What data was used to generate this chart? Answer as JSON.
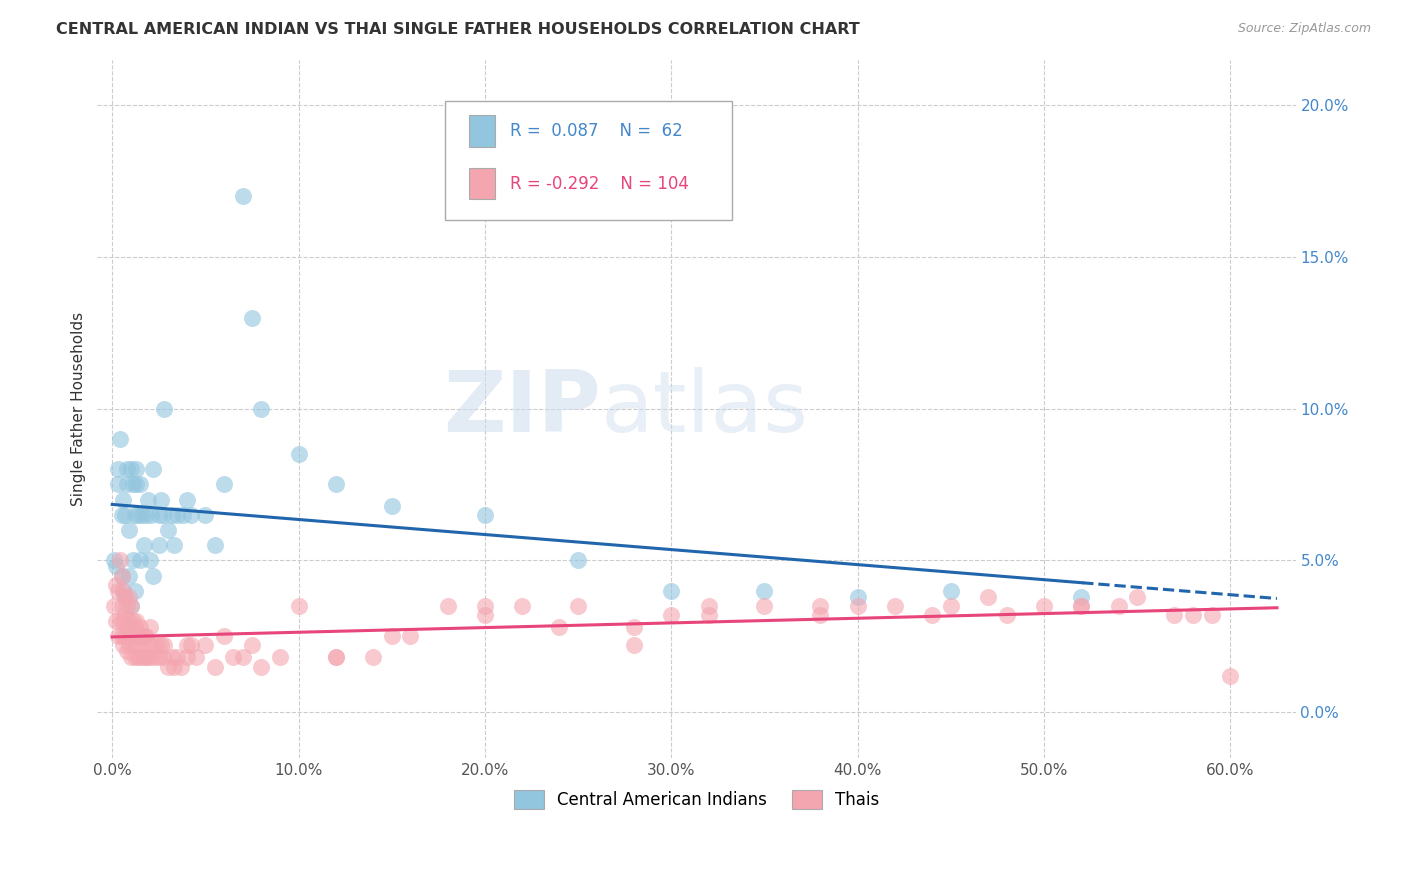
{
  "title": "CENTRAL AMERICAN INDIAN VS THAI SINGLE FATHER HOUSEHOLDS CORRELATION CHART",
  "source": "Source: ZipAtlas.com",
  "ylabel": "Single Father Households",
  "ytick_labels": [
    "0.0%",
    "5.0%",
    "10.0%",
    "15.0%",
    "20.0%"
  ],
  "ytick_vals": [
    0.0,
    0.05,
    0.1,
    0.15,
    0.2
  ],
  "xtick_labels": [
    "0.0%",
    "10.0%",
    "20.0%",
    "30.0%",
    "40.0%",
    "50.0%",
    "60.0%"
  ],
  "xtick_vals": [
    0.0,
    0.1,
    0.2,
    0.3,
    0.4,
    0.5,
    0.6
  ],
  "xlim": [
    -0.008,
    0.635
  ],
  "ylim": [
    -0.015,
    0.215
  ],
  "legend_blue_R": 0.087,
  "legend_blue_N": 62,
  "legend_pink_R": -0.292,
  "legend_pink_N": 104,
  "label_blue": "Central American Indians",
  "label_pink": "Thais",
  "blue_color": "#92c5de",
  "pink_color": "#f4a6b0",
  "blue_line_color": "#2166ac",
  "pink_line_color": "#e8457a",
  "watermark_zip": "ZIP",
  "watermark_atlas": "atlas",
  "blue_scatter_x": [
    0.001,
    0.002,
    0.003,
    0.003,
    0.004,
    0.005,
    0.005,
    0.006,
    0.006,
    0.007,
    0.007,
    0.008,
    0.008,
    0.009,
    0.009,
    0.01,
    0.01,
    0.011,
    0.011,
    0.012,
    0.012,
    0.013,
    0.013,
    0.014,
    0.015,
    0.015,
    0.016,
    0.017,
    0.018,
    0.019,
    0.02,
    0.021,
    0.022,
    0.022,
    0.025,
    0.025,
    0.026,
    0.027,
    0.028,
    0.03,
    0.032,
    0.033,
    0.035,
    0.038,
    0.04,
    0.042,
    0.05,
    0.055,
    0.06,
    0.07,
    0.075,
    0.08,
    0.1,
    0.12,
    0.15,
    0.2,
    0.25,
    0.3,
    0.35,
    0.4,
    0.45,
    0.52
  ],
  "blue_scatter_y": [
    0.05,
    0.048,
    0.075,
    0.08,
    0.09,
    0.045,
    0.065,
    0.04,
    0.07,
    0.038,
    0.065,
    0.075,
    0.08,
    0.045,
    0.06,
    0.035,
    0.08,
    0.05,
    0.075,
    0.04,
    0.065,
    0.075,
    0.08,
    0.065,
    0.05,
    0.075,
    0.065,
    0.055,
    0.065,
    0.07,
    0.05,
    0.065,
    0.045,
    0.08,
    0.055,
    0.065,
    0.07,
    0.065,
    0.1,
    0.06,
    0.065,
    0.055,
    0.065,
    0.065,
    0.07,
    0.065,
    0.065,
    0.055,
    0.075,
    0.17,
    0.13,
    0.1,
    0.085,
    0.075,
    0.068,
    0.065,
    0.05,
    0.04,
    0.04,
    0.038,
    0.04,
    0.038
  ],
  "pink_scatter_x": [
    0.001,
    0.002,
    0.002,
    0.003,
    0.003,
    0.004,
    0.004,
    0.005,
    0.005,
    0.005,
    0.006,
    0.006,
    0.006,
    0.007,
    0.007,
    0.007,
    0.008,
    0.008,
    0.008,
    0.009,
    0.009,
    0.009,
    0.01,
    0.01,
    0.01,
    0.011,
    0.011,
    0.012,
    0.012,
    0.013,
    0.013,
    0.014,
    0.014,
    0.015,
    0.015,
    0.016,
    0.016,
    0.017,
    0.017,
    0.018,
    0.018,
    0.019,
    0.02,
    0.02,
    0.021,
    0.022,
    0.023,
    0.024,
    0.025,
    0.026,
    0.027,
    0.028,
    0.03,
    0.032,
    0.033,
    0.035,
    0.037,
    0.04,
    0.04,
    0.042,
    0.045,
    0.05,
    0.055,
    0.06,
    0.065,
    0.07,
    0.075,
    0.08,
    0.09,
    0.1,
    0.12,
    0.14,
    0.16,
    0.18,
    0.2,
    0.22,
    0.25,
    0.28,
    0.3,
    0.32,
    0.35,
    0.38,
    0.4,
    0.42,
    0.45,
    0.47,
    0.5,
    0.52,
    0.54,
    0.55,
    0.57,
    0.58,
    0.59,
    0.6,
    0.52,
    0.48,
    0.44,
    0.38,
    0.32,
    0.28,
    0.24,
    0.2,
    0.15,
    0.12
  ],
  "pink_scatter_y": [
    0.035,
    0.03,
    0.042,
    0.025,
    0.04,
    0.03,
    0.05,
    0.025,
    0.035,
    0.045,
    0.022,
    0.03,
    0.04,
    0.025,
    0.032,
    0.038,
    0.02,
    0.028,
    0.035,
    0.022,
    0.03,
    0.038,
    0.018,
    0.025,
    0.035,
    0.022,
    0.03,
    0.018,
    0.028,
    0.022,
    0.03,
    0.018,
    0.025,
    0.018,
    0.028,
    0.02,
    0.025,
    0.018,
    0.025,
    0.018,
    0.025,
    0.018,
    0.022,
    0.028,
    0.018,
    0.022,
    0.018,
    0.022,
    0.018,
    0.022,
    0.018,
    0.022,
    0.015,
    0.018,
    0.015,
    0.018,
    0.015,
    0.022,
    0.018,
    0.022,
    0.018,
    0.022,
    0.015,
    0.025,
    0.018,
    0.018,
    0.022,
    0.015,
    0.018,
    0.035,
    0.018,
    0.018,
    0.025,
    0.035,
    0.035,
    0.035,
    0.035,
    0.028,
    0.032,
    0.035,
    0.035,
    0.035,
    0.035,
    0.035,
    0.035,
    0.038,
    0.035,
    0.035,
    0.035,
    0.038,
    0.032,
    0.032,
    0.032,
    0.012,
    0.035,
    0.032,
    0.032,
    0.032,
    0.032,
    0.022,
    0.028,
    0.032,
    0.025,
    0.018
  ]
}
